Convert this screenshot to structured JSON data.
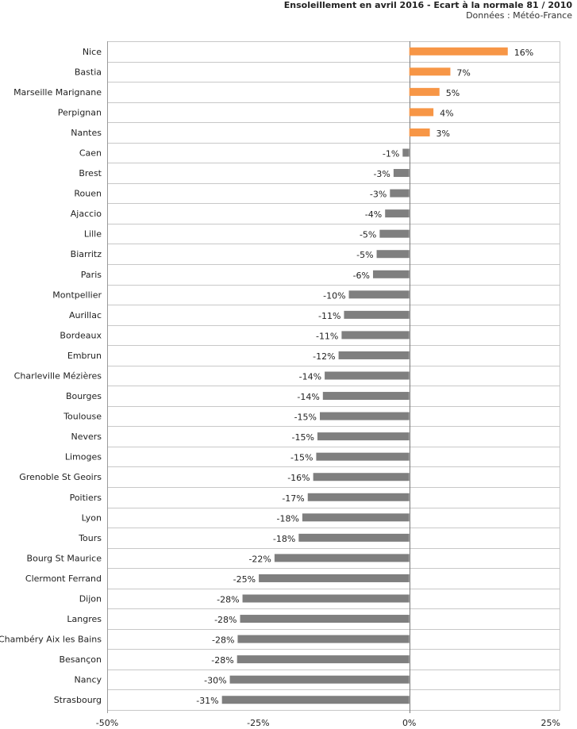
{
  "chart_data": {
    "type": "bar",
    "orientation": "horizontal",
    "title": "Ensoleillement en avril 2016 - Ecart à la normale 81 / 2010",
    "subtitle": "Données : Météo-France",
    "xlabel": "",
    "ylabel": "",
    "xlim": [
      -50,
      25
    ],
    "xticks": [
      -50,
      -25,
      0,
      25
    ],
    "xtick_labels": [
      "-50%",
      "-25%",
      "0%",
      "25%"
    ],
    "grid": true,
    "colors": {
      "positive": "#f79646",
      "negative": "#7f7f7f"
    },
    "categories": [
      "Nice",
      "Bastia",
      "Marseille Marignane",
      "Perpignan",
      "Nantes",
      "Caen",
      "Brest",
      "Rouen",
      "Ajaccio",
      "Lille",
      "Biarritz",
      "Paris",
      "Montpellier",
      "Aurillac",
      "Bordeaux",
      "Embrun",
      "Charleville Mézières",
      "Bourges",
      "Toulouse",
      "Nevers",
      "Limoges",
      "Grenoble St Geoirs",
      "Poitiers",
      "Lyon",
      "Tours",
      "Bourg St Maurice",
      "Clermont Ferrand",
      "Dijon",
      "Langres",
      "Chambéry Aix les Bains",
      "Besançon",
      "Nancy",
      "Strasbourg"
    ],
    "values": [
      16,
      7,
      5,
      4,
      3,
      -1,
      -3,
      -3,
      -4,
      -5,
      -5,
      -6,
      -10,
      -11,
      -11,
      -12,
      -14,
      -14,
      -15,
      -15,
      -15,
      -16,
      -17,
      -18,
      -18,
      -22,
      -25,
      -28,
      -28,
      -28,
      -28,
      -30,
      -31
    ],
    "bar_values": [
      16.3,
      6.8,
      5.0,
      4.0,
      3.4,
      -1.1,
      -2.6,
      -3.2,
      -4.0,
      -4.9,
      -5.4,
      -6.0,
      -10.0,
      -10.8,
      -11.2,
      -11.7,
      -14.0,
      -14.3,
      -14.8,
      -15.2,
      -15.4,
      -15.9,
      -16.8,
      -17.7,
      -18.3,
      -22.3,
      -24.9,
      -27.6,
      -28.0,
      -28.4,
      -28.5,
      -29.7,
      -31.0
    ],
    "data_labels": [
      "16%",
      "7%",
      "5%",
      "4%",
      "3%",
      "-1%",
      "-3%",
      "-3%",
      "-4%",
      "-5%",
      "-5%",
      "-6%",
      "-10%",
      "-11%",
      "-11%",
      "-12%",
      "-14%",
      "-14%",
      "-15%",
      "-15%",
      "-15%",
      "-16%",
      "-17%",
      "-18%",
      "-18%",
      "-22%",
      "-25%",
      "-28%",
      "-28%",
      "-28%",
      "-28%",
      "-30%",
      "-31%"
    ]
  }
}
